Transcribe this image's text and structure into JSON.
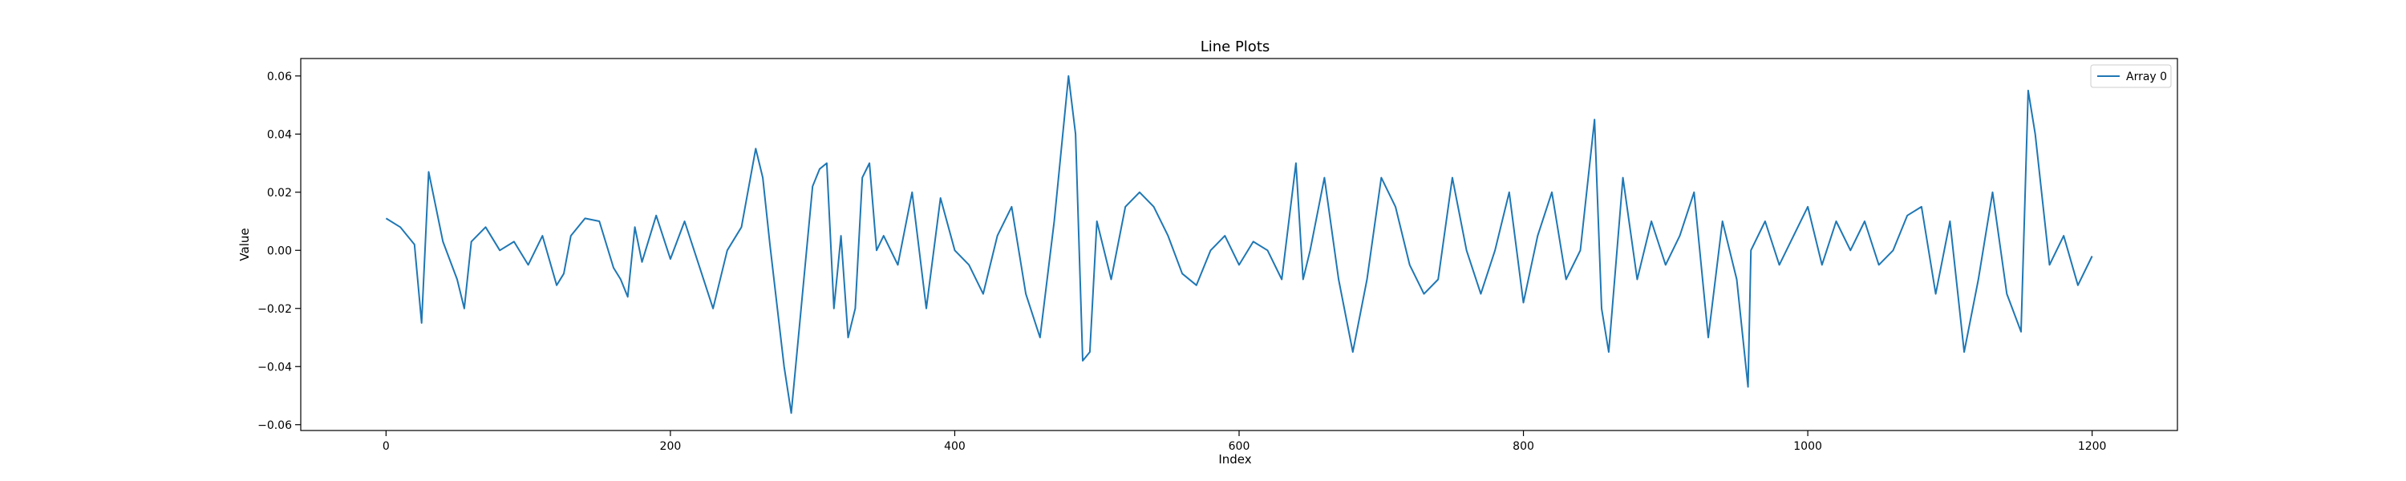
{
  "chart_data": {
    "type": "line",
    "title": "Line Plots",
    "xlabel": "Index",
    "ylabel": "Value",
    "xlim": [
      -60,
      1260
    ],
    "ylim": [
      -0.062,
      0.066
    ],
    "xticks": [
      0,
      200,
      400,
      600,
      800,
      1000,
      1200
    ],
    "yticks": [
      -0.06,
      -0.04,
      -0.02,
      0.0,
      0.02,
      0.04,
      0.06
    ],
    "xtick_labels": [
      "0",
      "200",
      "400",
      "600",
      "800",
      "1000",
      "1200"
    ],
    "ytick_labels": [
      "−0.06",
      "−0.04",
      "−0.02",
      "0.00",
      "0.02",
      "0.04",
      "0.06"
    ],
    "legend": {
      "position": "top-right",
      "entries": [
        "Array 0"
      ]
    },
    "grid": false,
    "colors": {
      "series": "#1f77b4"
    },
    "series": [
      {
        "name": "Array 0",
        "x": [
          0,
          10,
          20,
          25,
          30,
          40,
          50,
          55,
          60,
          70,
          80,
          90,
          100,
          110,
          120,
          125,
          130,
          140,
          150,
          160,
          165,
          170,
          175,
          180,
          190,
          200,
          210,
          220,
          230,
          240,
          250,
          260,
          265,
          270,
          280,
          285,
          290,
          300,
          305,
          310,
          315,
          320,
          325,
          330,
          335,
          340,
          345,
          350,
          360,
          370,
          380,
          390,
          400,
          410,
          420,
          430,
          440,
          450,
          460,
          470,
          480,
          485,
          490,
          495,
          500,
          505,
          510,
          520,
          530,
          540,
          550,
          560,
          570,
          580,
          590,
          600,
          610,
          620,
          630,
          640,
          645,
          650,
          660,
          670,
          680,
          690,
          700,
          710,
          720,
          730,
          740,
          750,
          760,
          770,
          780,
          790,
          800,
          810,
          820,
          830,
          840,
          850,
          855,
          860,
          870,
          880,
          890,
          900,
          910,
          920,
          930,
          940,
          950,
          958,
          960,
          970,
          980,
          990,
          1000,
          1010,
          1020,
          1030,
          1040,
          1050,
          1060,
          1070,
          1080,
          1090,
          1100,
          1110,
          1120,
          1130,
          1140,
          1150,
          1155,
          1160,
          1170,
          1180,
          1190,
          1200
        ],
        "y": [
          0.011,
          0.008,
          0.002,
          -0.025,
          0.027,
          0.003,
          -0.01,
          -0.02,
          0.003,
          0.008,
          0.0,
          0.003,
          -0.005,
          0.005,
          -0.012,
          -0.008,
          0.005,
          0.011,
          0.01,
          -0.006,
          -0.01,
          -0.016,
          0.008,
          -0.004,
          0.012,
          -0.003,
          0.01,
          -0.005,
          -0.02,
          0.0,
          0.008,
          0.035,
          0.025,
          0.002,
          -0.04,
          -0.056,
          -0.03,
          0.022,
          0.028,
          0.03,
          -0.02,
          0.005,
          -0.03,
          -0.02,
          0.025,
          0.03,
          0.0,
          0.005,
          -0.005,
          0.02,
          -0.02,
          0.018,
          0.0,
          -0.005,
          -0.015,
          0.005,
          0.015,
          -0.015,
          -0.03,
          0.01,
          0.06,
          0.04,
          -0.038,
          -0.035,
          0.01,
          0.0,
          -0.01,
          0.015,
          0.02,
          0.015,
          0.005,
          -0.008,
          -0.012,
          0.0,
          0.005,
          -0.005,
          0.003,
          0.0,
          -0.01,
          0.03,
          -0.01,
          0.0,
          0.025,
          -0.01,
          -0.035,
          -0.01,
          0.025,
          0.015,
          -0.005,
          -0.015,
          -0.01,
          0.025,
          0.0,
          -0.015,
          0.0,
          0.02,
          -0.018,
          0.005,
          0.02,
          -0.01,
          0.0,
          0.045,
          -0.02,
          -0.035,
          0.025,
          -0.01,
          0.01,
          -0.005,
          0.005,
          0.02,
          -0.03,
          0.01,
          -0.01,
          -0.047,
          0.0,
          0.01,
          -0.005,
          0.005,
          0.015,
          -0.005,
          0.01,
          0.0,
          0.01,
          -0.005,
          0.0,
          0.012,
          0.015,
          -0.015,
          0.01,
          -0.035,
          -0.01,
          0.02,
          -0.015,
          -0.028,
          0.055,
          0.04,
          -0.005,
          0.005,
          -0.012,
          -0.002
        ]
      }
    ]
  }
}
